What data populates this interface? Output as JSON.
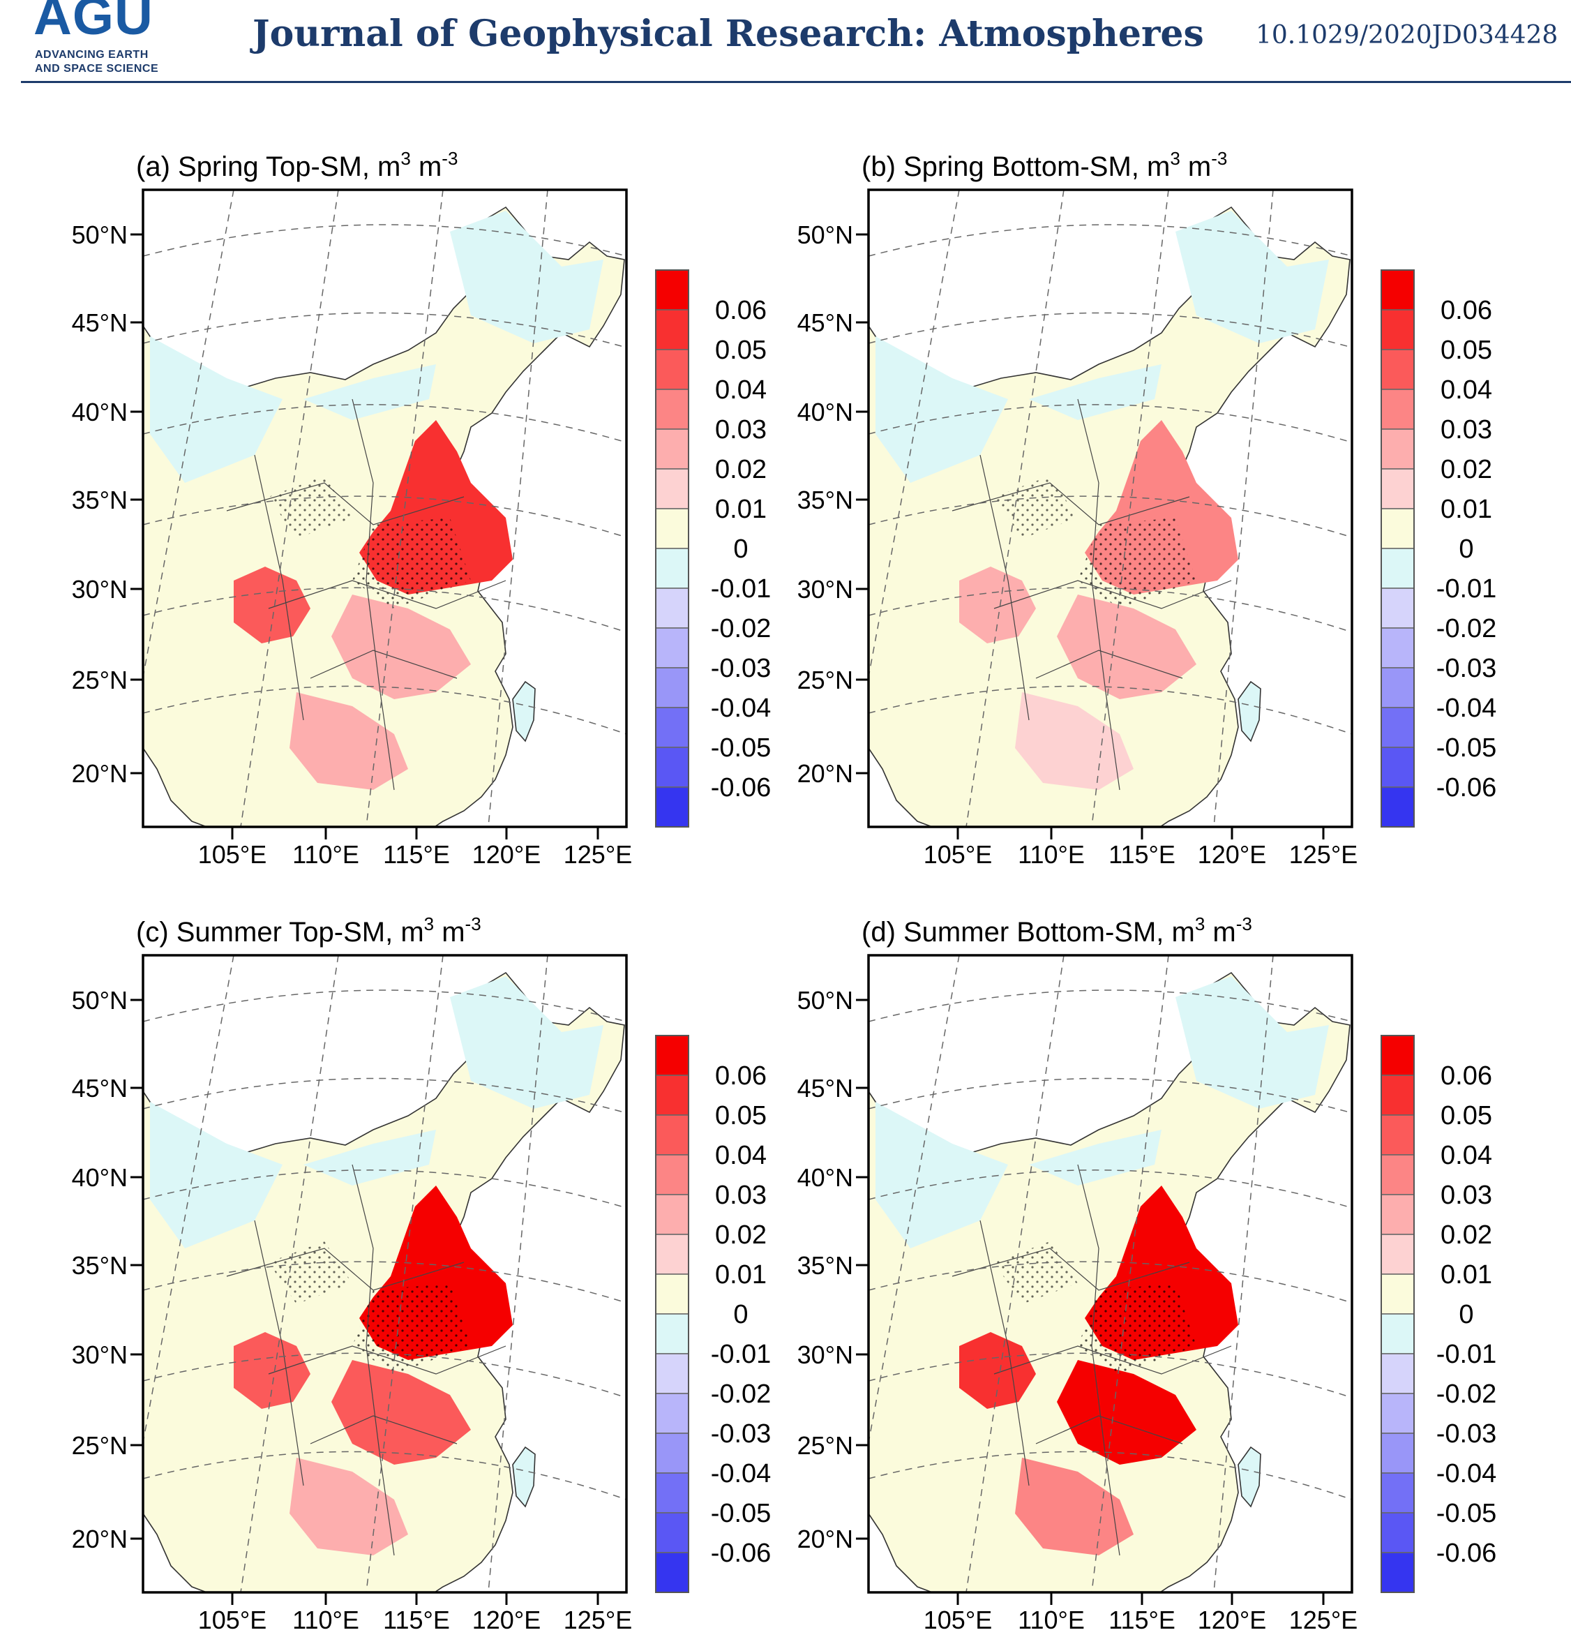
{
  "header": {
    "logo_text": "AGU",
    "logo_sub1": "ADVANCING EARTH",
    "logo_sub2": "AND SPACE SCIENCE",
    "journal_title": "Journal of Geophysical Research: Atmospheres",
    "doi": "10.1029/2020JD034428"
  },
  "colors": {
    "header_blue": "#1d3b6b",
    "colorbar": [
      "#f50000",
      "#f83030",
      "#fb5a5a",
      "#fc8585",
      "#fdaeae",
      "#fdd2d2",
      "#fbfbdc",
      "#dcf7f7",
      "#d6d4fb",
      "#b8b5fa",
      "#9996f8",
      "#7370f6",
      "#5a57f4",
      "#3535f0"
    ]
  },
  "panels": [
    {
      "label": "(a) Spring Top-SM, m",
      "sup1": "3",
      "mid": " m",
      "sup2": "-3"
    },
    {
      "label": "(b) Spring Bottom-SM, m",
      "sup1": "3",
      "mid": " m",
      "sup2": "-3"
    },
    {
      "label": "(c) Summer Top-SM, m",
      "sup1": "3",
      "mid": " m",
      "sup2": "-3"
    },
    {
      "label": "(d) Summer Bottom-SM, m",
      "sup1": "3",
      "mid": " m",
      "sup2": "-3"
    }
  ],
  "axes": {
    "lat_ticks": [
      "50°N",
      "45°N",
      "40°N",
      "35°N",
      "30°N",
      "25°N",
      "20°N"
    ],
    "lon_ticks": [
      "105°E",
      "110°E",
      "115°E",
      "120°E",
      "125°E"
    ]
  },
  "colorbar_labels": [
    "0.06",
    "0.05",
    "0.04",
    "0.03",
    "0.02",
    "0.01",
    "0",
    "-0.01",
    "-0.02",
    "-0.03",
    "-0.04",
    "-0.05",
    "-0.06"
  ]
}
